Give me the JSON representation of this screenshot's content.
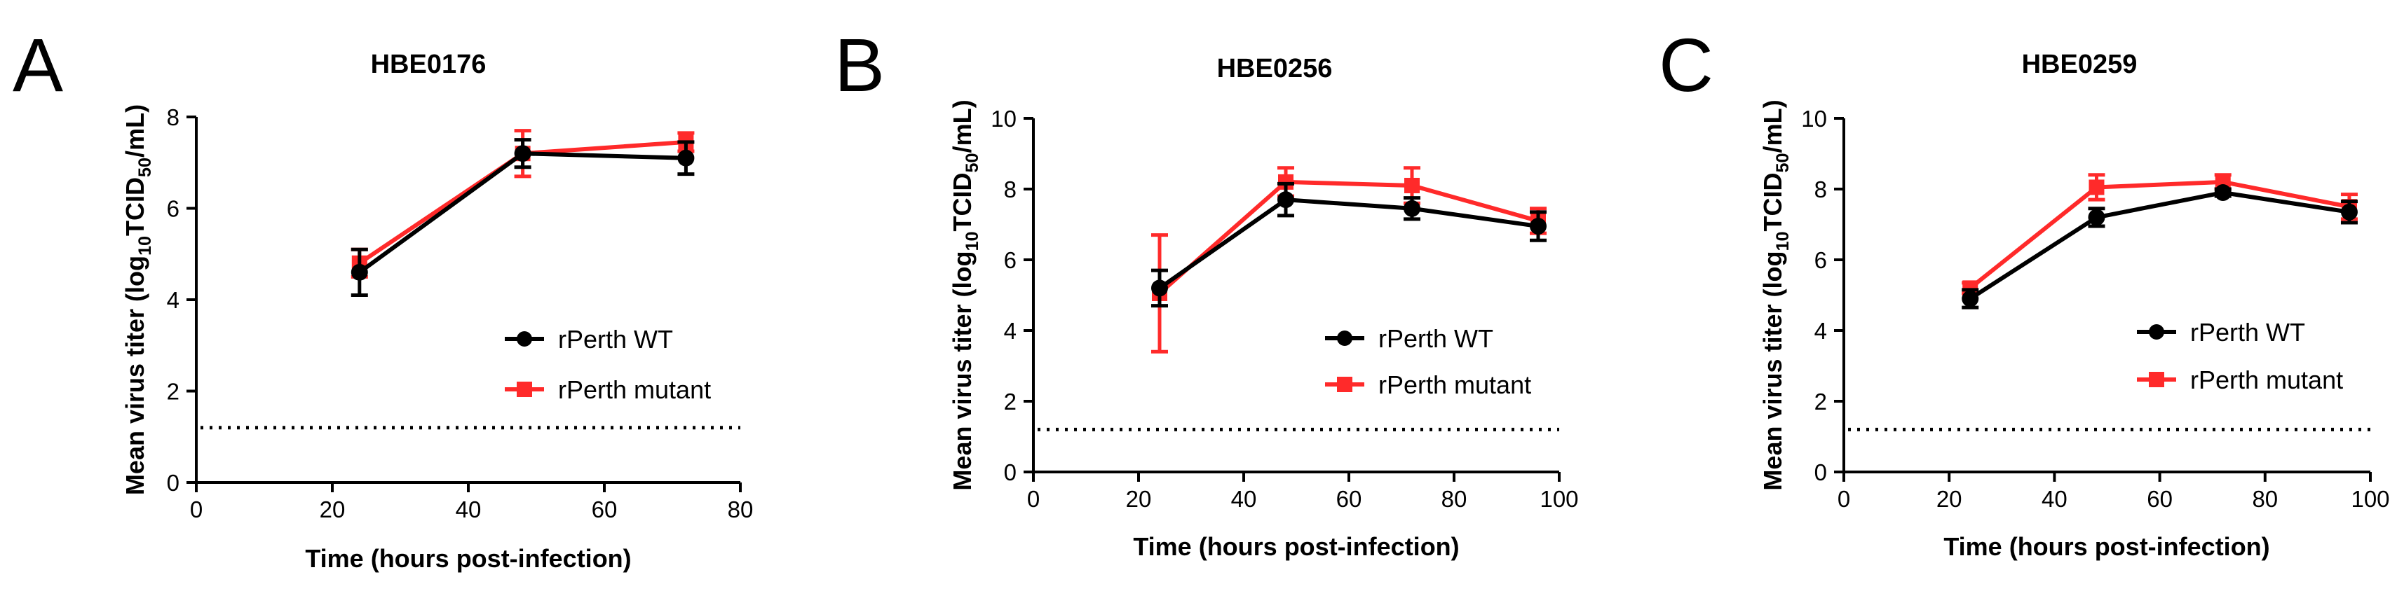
{
  "chart_data": [
    {
      "type": "line",
      "panel_label": "A",
      "title": "HBE0176",
      "xlabel": "Time (hours post-infection)",
      "ylabel": "Mean virus titer (log10TCID50/mL)",
      "ylabel_parts": {
        "main": "Mean virus titer (log",
        "sub1": "10",
        "mid": "TCID",
        "sub2": "50",
        "end": "/mL)"
      },
      "xlim": [
        0,
        80
      ],
      "ylim": [
        0,
        8
      ],
      "x_ticks": [
        "0",
        "20",
        "40",
        "60",
        "80"
      ],
      "y_ticks": [
        "0",
        "2",
        "4",
        "6",
        "8"
      ],
      "detection_limit": 1.2,
      "legend_position": "right",
      "grid": false,
      "series": [
        {
          "name": "rPerth WT",
          "color": "#000000",
          "x": [
            24,
            48,
            72
          ],
          "y": [
            4.6,
            7.2,
            7.1
          ],
          "err": [
            0.5,
            0.3,
            0.35
          ]
        },
        {
          "name": "rPerth mutant",
          "color": "#ff2a2a",
          "x": [
            24,
            48,
            72
          ],
          "y": [
            4.8,
            7.2,
            7.45
          ],
          "err": [
            0.3,
            0.5,
            0.2
          ]
        }
      ]
    },
    {
      "type": "line",
      "panel_label": "B",
      "title": "HBE0256",
      "xlabel": "Time (hours post-infection)",
      "ylabel": "Mean virus titer (log10TCID50/mL)",
      "ylabel_parts": {
        "main": "Mean virus titer (log",
        "sub1": "10",
        "mid": "TCID",
        "sub2": "50",
        "end": "/mL)"
      },
      "xlim": [
        0,
        100
      ],
      "ylim": [
        0,
        10
      ],
      "x_ticks": [
        "0",
        "20",
        "40",
        "60",
        "80",
        "100"
      ],
      "y_ticks": [
        "0",
        "2",
        "4",
        "6",
        "8",
        "10"
      ],
      "detection_limit": 1.2,
      "legend_position": "right",
      "grid": false,
      "series": [
        {
          "name": "rPerth WT",
          "color": "#000000",
          "x": [
            24,
            48,
            72,
            96
          ],
          "y": [
            5.2,
            7.7,
            7.45,
            6.95
          ],
          "err": [
            0.5,
            0.45,
            0.3,
            0.4
          ]
        },
        {
          "name": "rPerth mutant",
          "color": "#ff2a2a",
          "x": [
            24,
            48,
            72,
            96
          ],
          "y": [
            5.05,
            8.2,
            8.1,
            7.1
          ],
          "err": [
            1.65,
            0.4,
            0.5,
            0.35
          ]
        }
      ]
    },
    {
      "type": "line",
      "panel_label": "C",
      "title": "HBE0259",
      "xlabel": "Time (hours post-infection)",
      "ylabel": "Mean virus titer (log10TCID50/mL)",
      "ylabel_parts": {
        "main": "Mean virus titer (log",
        "sub1": "10",
        "mid": "TCID",
        "sub2": "50",
        "end": "/mL)"
      },
      "xlim": [
        0,
        100
      ],
      "ylim": [
        0,
        10
      ],
      "x_ticks": [
        "0",
        "20",
        "40",
        "60",
        "80",
        "100"
      ],
      "y_ticks": [
        "0",
        "2",
        "4",
        "6",
        "8",
        "10"
      ],
      "detection_limit": 1.2,
      "legend_position": "right",
      "grid": false,
      "series": [
        {
          "name": "rPerth WT",
          "color": "#000000",
          "x": [
            24,
            48,
            72,
            96
          ],
          "y": [
            4.9,
            7.2,
            7.9,
            7.35
          ],
          "err": [
            0.25,
            0.25,
            0.1,
            0.3
          ]
        },
        {
          "name": "rPerth mutant",
          "color": "#ff2a2a",
          "x": [
            24,
            48,
            72,
            96
          ],
          "y": [
            5.2,
            8.05,
            8.2,
            7.5
          ],
          "err": [
            0.15,
            0.35,
            0.2,
            0.35
          ]
        }
      ]
    }
  ]
}
